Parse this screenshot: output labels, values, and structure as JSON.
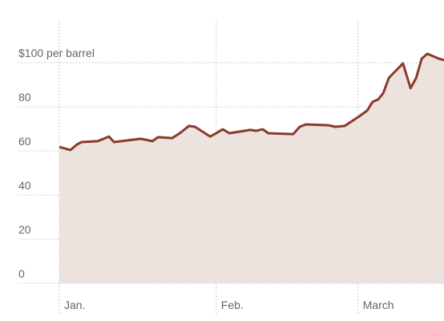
{
  "chart_data": {
    "type": "area",
    "x": [
      0,
      2.2,
      3.5,
      4.4,
      7.6,
      9.8,
      10.8,
      16.1,
      18.4,
      19.5,
      22.3,
      23.8,
      25.6,
      26.8,
      29.8,
      30.7,
      32.3,
      33.6,
      37.7,
      38.9,
      40.2,
      41.3,
      46.2,
      47.5,
      48.7,
      53.2,
      54.5,
      56.4,
      59.2,
      60.8,
      61.9,
      63,
      64,
      65.1,
      67.9,
      69.4,
      70.5,
      71.6,
      72.7,
      75,
      76
    ],
    "values": [
      61.8,
      60.4,
      62.9,
      64,
      64.4,
      66.5,
      64,
      65.5,
      64.4,
      66.2,
      65.8,
      68,
      71.3,
      70.9,
      66.5,
      67.6,
      69.8,
      68,
      69.5,
      69.1,
      69.8,
      68,
      67.6,
      70.9,
      72,
      71.6,
      70.9,
      71.3,
      75.6,
      78.2,
      82.2,
      83.3,
      86.2,
      93.1,
      99.6,
      88.4,
      93.1,
      101.8,
      104,
      101.8,
      101.1
    ],
    "color": "#8b3a2b",
    "fill": "#ece2de",
    "xlim": [
      0,
      76
    ],
    "xticks": [
      {
        "value": 0,
        "label": "Jan."
      },
      {
        "value": 31,
        "label": "Feb."
      },
      {
        "value": 59,
        "label": "March"
      }
    ],
    "ylim": [
      0,
      100
    ],
    "yticks": [
      0,
      20,
      40,
      60,
      80,
      {
        "value": 100,
        "label": "$100 per barrel"
      }
    ],
    "grid": true
  }
}
